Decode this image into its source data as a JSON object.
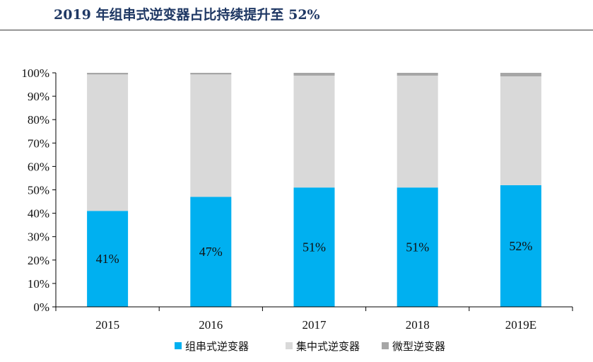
{
  "header": {
    "title": "2019 年组串式逆变器占比持续提升至 52%"
  },
  "chart_data": {
    "type": "bar",
    "stacked": true,
    "title": "2019 年组串式逆变器占比持续提升至 52%",
    "categories": [
      "2015",
      "2016",
      "2017",
      "2018",
      "2019E"
    ],
    "series": [
      {
        "name": "组串式逆变器",
        "color": "#00b0f0",
        "values": [
          41,
          47,
          51,
          51,
          52
        ],
        "labels": [
          "41%",
          "47%",
          "51%",
          "51%",
          "52%"
        ]
      },
      {
        "name": "集中式逆变器",
        "color": "#d9d9d9",
        "values": [
          58.3,
          52.3,
          47.8,
          47.8,
          46.5
        ]
      },
      {
        "name": "微型逆变器",
        "color": "#a6a6a6",
        "values": [
          0.7,
          0.7,
          1.2,
          1.2,
          1.5
        ]
      }
    ],
    "y_ticks": [
      "0%",
      "10%",
      "20%",
      "30%",
      "40%",
      "50%",
      "60%",
      "70%",
      "80%",
      "90%",
      "100%"
    ],
    "ylim": [
      0,
      100
    ],
    "grid": false,
    "legend_position": "bottom"
  }
}
